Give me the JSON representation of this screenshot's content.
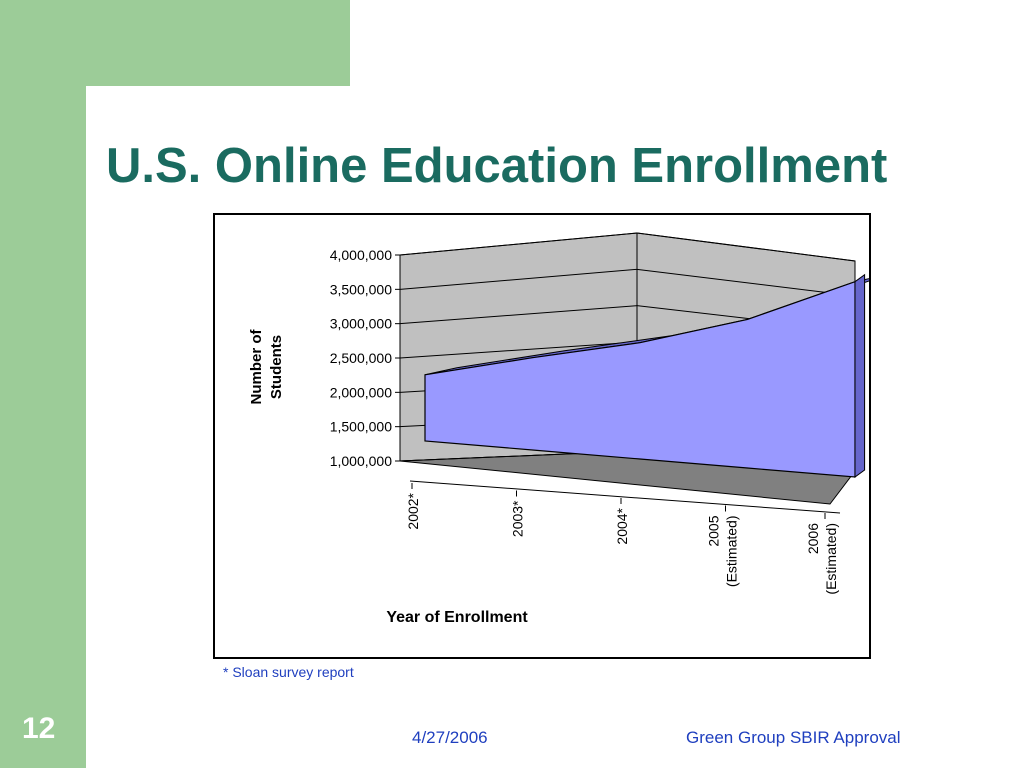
{
  "slide": {
    "title": "U.S. Online Education Enrollment",
    "footnote": "* Sloan survey report",
    "number": "12",
    "date": "4/27/2006",
    "footer": "Green Group SBIR Approval"
  },
  "colors": {
    "green": "#9ccc98",
    "title": "#1a6b60",
    "footer_text": "#1f3fbf",
    "area_front": "#9999ff",
    "area_top": "#6666cc",
    "wall": "#c0c0c0",
    "floor": "#808080"
  },
  "chart_data": {
    "type": "area",
    "title": "",
    "categories": [
      "2002*",
      "2003*",
      "2004*",
      "2005 (Estimated)",
      "2006 (Estimated)"
    ],
    "category_lines": [
      [
        "2002*"
      ],
      [
        "2003*"
      ],
      [
        "2004*"
      ],
      [
        "2005",
        "(Estimated)"
      ],
      [
        "2006",
        "(Estimated)"
      ]
    ],
    "values": [
      1600000,
      1980000,
      2330000,
      2800000,
      3480000
    ],
    "ylim": [
      1000000,
      4000000
    ],
    "yticks": [
      "1,000,000",
      "1,500,000",
      "2,000,000",
      "2,500,000",
      "3,000,000",
      "3,500,000",
      "4,000,000"
    ],
    "ylabel_lines": [
      "Number of",
      "Students"
    ],
    "xlabel": "Year of Enrollment",
    "grid": true,
    "three_d": true
  }
}
